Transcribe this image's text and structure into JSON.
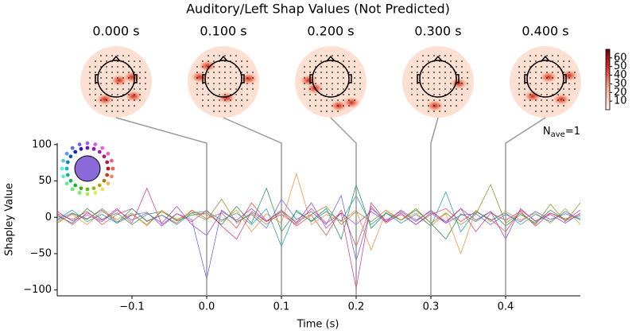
{
  "chart_data": {
    "type": "line",
    "title": "Auditory/Left Shap Values (Not Predicted)",
    "x_label": "Time (s)",
    "y_label": "Shapley Value",
    "nave": {
      "symbol": "N",
      "subscript": "ave",
      "text": "=1"
    },
    "x": [
      -0.2,
      -0.18,
      -0.16,
      -0.14,
      -0.12,
      -0.1,
      -0.08,
      -0.06,
      -0.04,
      -0.02,
      0,
      0.02,
      0.04,
      0.06,
      0.08,
      0.1,
      0.12,
      0.14,
      0.16,
      0.18,
      0.2,
      0.22,
      0.24,
      0.26,
      0.28,
      0.3,
      0.32,
      0.34,
      0.36,
      0.38,
      0.4,
      0.42,
      0.44,
      0.46,
      0.48,
      0.5
    ],
    "xlim": [
      -0.2,
      0.5
    ],
    "xticks": [
      {
        "value": -0.1,
        "label": "−0.1"
      },
      {
        "value": 0,
        "label": "0.0"
      },
      {
        "value": 0.1,
        "label": "0.1"
      },
      {
        "value": 0.2,
        "label": "0.2"
      },
      {
        "value": 0.3,
        "label": "0.3"
      },
      {
        "value": 0.4,
        "label": "0.4"
      }
    ],
    "ylim": [
      -108,
      102
    ],
    "yticks": [
      {
        "value": -100,
        "label": "−100"
      },
      {
        "value": -50,
        "label": "−50"
      },
      0,
      50,
      100
    ],
    "series": [
      {
        "color": "#e8413c",
        "values": [
          5,
          -3,
          8,
          -10,
          4,
          12,
          -6,
          3,
          -8,
          10,
          -2,
          6,
          -15,
          20,
          -5,
          8,
          -12,
          3,
          -25,
          10,
          -40,
          15,
          -8,
          6,
          -10,
          4,
          12,
          -6,
          8,
          -3,
          -20,
          10,
          -5,
          6,
          -2,
          4
        ]
      },
      {
        "color": "#5a5ae8",
        "values": [
          -4,
          6,
          -2,
          10,
          -8,
          3,
          7,
          -12,
          5,
          -3,
          -85,
          10,
          -6,
          4,
          -15,
          25,
          -3,
          8,
          -10,
          30,
          -60,
          12,
          -4,
          8,
          -6,
          10,
          -8,
          3,
          5,
          -10,
          4,
          -6,
          8,
          -3,
          5,
          -2
        ]
      },
      {
        "color": "#1e8a3c",
        "values": [
          2,
          -8,
          12,
          -3,
          6,
          -10,
          4,
          8,
          -5,
          3,
          6,
          -10,
          15,
          -8,
          40,
          -20,
          8,
          -5,
          12,
          -30,
          45,
          -15,
          6,
          -4,
          10,
          -8,
          -30,
          5,
          -6,
          8,
          -12,
          4,
          -8,
          10,
          -4,
          2
        ]
      },
      {
        "color": "#f08a2a",
        "values": [
          -6,
          4,
          -10,
          8,
          -3,
          6,
          -12,
          10,
          -4,
          8,
          3,
          -6,
          10,
          -20,
          5,
          -8,
          60,
          -10,
          4,
          -6,
          10,
          -45,
          8,
          -4,
          6,
          -12,
          5,
          -50,
          10,
          -6,
          8,
          -4,
          6,
          -8,
          12,
          -10
        ]
      },
      {
        "color": "#9a3ad0",
        "values": [
          8,
          -5,
          3,
          -6,
          10,
          -4,
          6,
          -8,
          15,
          -10,
          -25,
          8,
          -4,
          12,
          -6,
          10,
          -8,
          20,
          -15,
          6,
          -10,
          8,
          -6,
          4,
          -10,
          6,
          -8,
          12,
          -4,
          8,
          -30,
          12,
          -6,
          4,
          -8,
          6
        ]
      },
      {
        "color": "#1a9aa8",
        "values": [
          -3,
          10,
          -6,
          4,
          -8,
          12,
          -5,
          3,
          -10,
          6,
          8,
          -4,
          6,
          -10,
          12,
          -40,
          10,
          -6,
          8,
          -5,
          30,
          -10,
          6,
          -8,
          4,
          -12,
          35,
          -20,
          8,
          -4,
          6,
          -10,
          4,
          -6,
          8,
          -4
        ]
      },
      {
        "color": "#d8307a",
        "values": [
          4,
          -10,
          6,
          -4,
          12,
          -8,
          40,
          -10,
          5,
          -6,
          10,
          -12,
          -30,
          8,
          -6,
          4,
          -10,
          12,
          -8,
          6,
          -98,
          20,
          -6,
          10,
          -4,
          8,
          -6,
          12,
          -20,
          6,
          -4,
          8,
          -12,
          6,
          -4,
          10
        ]
      },
      {
        "color": "#8a8a20",
        "values": [
          -8,
          5,
          -3,
          12,
          -6,
          4,
          -10,
          8,
          -3,
          6,
          -4,
          25,
          -8,
          6,
          -10,
          8,
          -6,
          4,
          15,
          -10,
          8,
          -6,
          10,
          -4,
          12,
          -8,
          6,
          -10,
          4,
          45,
          -8,
          6,
          -10,
          18,
          -6,
          20
        ]
      }
    ],
    "topomap_times": [
      {
        "value": 0,
        "label": "0.000 s"
      },
      {
        "value": 0.1,
        "label": "0.100 s"
      },
      {
        "value": 0.2,
        "label": "0.200 s"
      },
      {
        "value": 0.3,
        "label": "0.300 s"
      },
      {
        "value": 0.4,
        "label": "0.400 s"
      }
    ],
    "colorbar": {
      "lim": [
        0,
        70
      ],
      "ticks": [
        10,
        20,
        30,
        40,
        50,
        60
      ]
    }
  }
}
